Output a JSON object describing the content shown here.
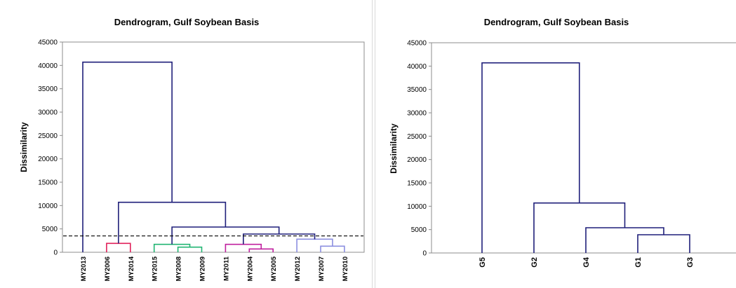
{
  "chart_data": [
    {
      "type": "dendrogram",
      "title": "Dendrogram, Gulf Soybean Basis",
      "ylabel": "Dissimilarity",
      "xlabel": "",
      "ylim": [
        0,
        45000
      ],
      "yticks": [
        "0",
        "5000",
        "10000",
        "15000",
        "20000",
        "25000",
        "30000",
        "35000",
        "40000",
        "45000"
      ],
      "leaves": [
        "MY2013",
        "MY2006",
        "MY2014",
        "MY2015",
        "MY2008",
        "MY2009",
        "MY2011",
        "MY2004",
        "MY2005",
        "MY2012",
        "MY2007",
        "MY2010"
      ],
      "cut_line": 3500,
      "merges": [
        {
          "a": "L7",
          "b": "L8",
          "h": 700,
          "color": "#c0209f"
        },
        {
          "a": "L6",
          "b": "N0",
          "h": 1700,
          "color": "#c0209f"
        },
        {
          "a": "L10",
          "b": "L11",
          "h": 1300,
          "color": "#8c8fe0"
        },
        {
          "a": "L9",
          "b": "N2",
          "h": 2800,
          "color": "#8c8fe0"
        },
        {
          "a": "L4",
          "b": "L5",
          "h": 1100,
          "color": "#22b573"
        },
        {
          "a": "L3",
          "b": "N4",
          "h": 1700,
          "color": "#22b573"
        },
        {
          "a": "L1",
          "b": "L2",
          "h": 1900,
          "color": "#e0205a"
        },
        {
          "a": "N1",
          "b": "N3",
          "h": 3900,
          "color": "#1f1f7a"
        },
        {
          "a": "N5",
          "b": "N7",
          "h": 5400,
          "color": "#1f1f7a"
        },
        {
          "a": "N6",
          "b": "N8",
          "h": 10700,
          "color": "#1f1f7a"
        },
        {
          "a": "L0",
          "b": "N9",
          "h": 40700,
          "color": "#1f1f7a"
        }
      ]
    },
    {
      "type": "dendrogram",
      "title": "Dendrogram, Gulf Soybean Basis",
      "ylabel": "Dissimilarity",
      "xlabel": "",
      "ylim": [
        0,
        45000
      ],
      "yticks": [
        "0",
        "5000",
        "10000",
        "15000",
        "20000",
        "25000",
        "30000",
        "35000",
        "40000",
        "45000"
      ],
      "leaves": [
        "G5",
        "G2",
        "G4",
        "G1",
        "G3"
      ],
      "merges": [
        {
          "a": "L3",
          "b": "L4",
          "h": 3900,
          "color": "#1f1f7a"
        },
        {
          "a": "L2",
          "b": "N0",
          "h": 5400,
          "color": "#1f1f7a"
        },
        {
          "a": "L1",
          "b": "N1",
          "h": 10700,
          "color": "#1f1f7a"
        },
        {
          "a": "L0",
          "b": "N2",
          "h": 40700,
          "color": "#1f1f7a"
        }
      ]
    }
  ]
}
